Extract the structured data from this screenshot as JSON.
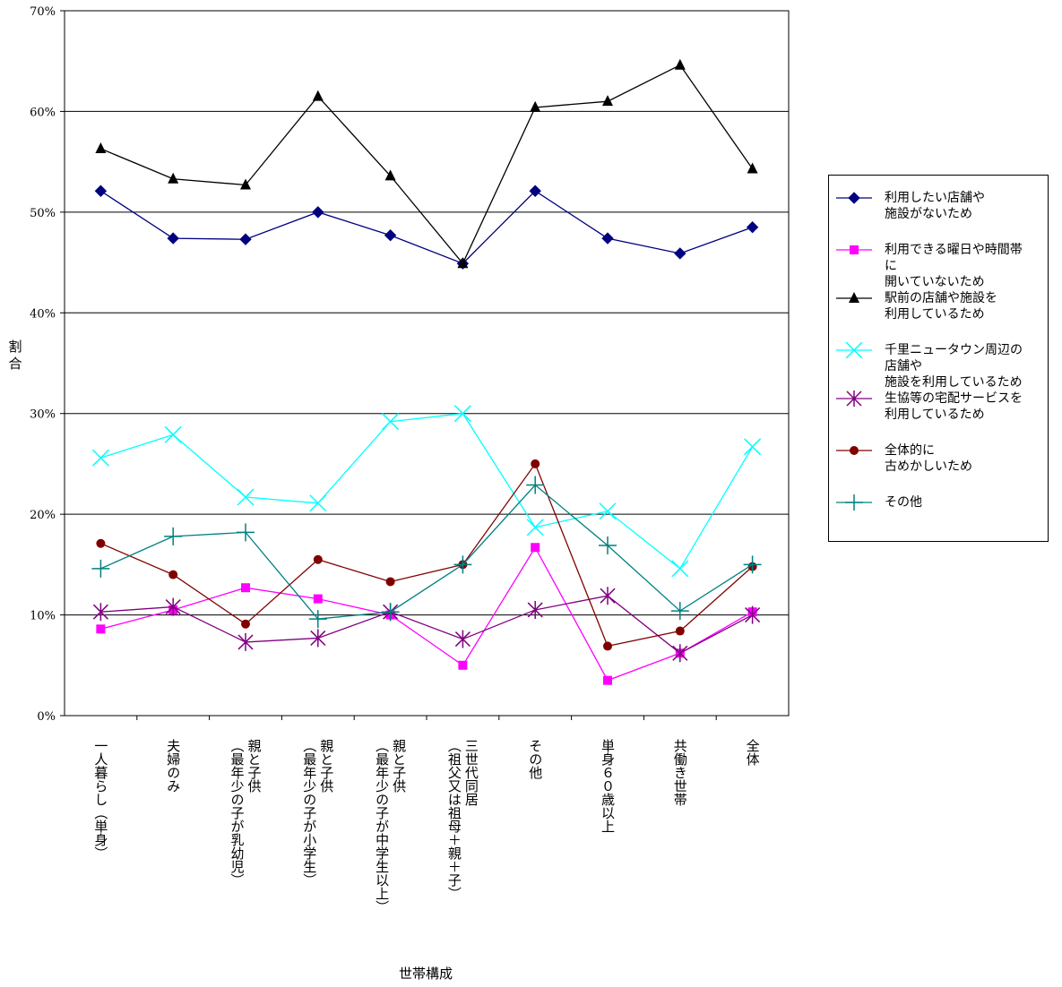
{
  "chart_data": {
    "type": "line",
    "title": "",
    "xlabel": "世帯構成",
    "ylabel": "割合",
    "ylim": [
      0,
      70
    ],
    "yticks": [
      "0%",
      "10%",
      "20%",
      "30%",
      "40%",
      "50%",
      "60%",
      "70%"
    ],
    "grid": true,
    "legend_position": "right",
    "categories": [
      "一人暮らし（単身）",
      "夫婦のみ",
      "親と子供\n（最年少の子が乳幼児）",
      "親と子供\n（最年少の子が小学生）",
      "親と子供\n（最年少の子が中学生以上）",
      "三世代同居\n（祖父又は祖母＋親＋子）",
      "その他",
      "単身６０歳以上",
      "共働き世帯",
      "全体"
    ],
    "series": [
      {
        "name": "利用したい店舗や\n施設がないため",
        "color": "#000080",
        "marker": "diamond",
        "values": [
          52.1,
          47.4,
          47.3,
          50.0,
          47.7,
          44.9,
          52.1,
          47.4,
          45.9,
          48.5
        ]
      },
      {
        "name": "利用できる曜日や時間帯\nに\n開いていないため",
        "color": "#ff00ff",
        "marker": "square",
        "values": [
          8.6,
          10.5,
          12.7,
          11.6,
          10.0,
          5.0,
          16.7,
          3.5,
          6.2,
          10.3
        ]
      },
      {
        "name": "駅前の店舗や施設を\n利用しているため",
        "color": "#000000",
        "marker": "triangle",
        "values": [
          56.3,
          53.3,
          52.7,
          61.5,
          53.6,
          44.9,
          60.4,
          61.0,
          64.6,
          54.3
        ]
      },
      {
        "name": "千里ニュータウン周辺の\n店舗や\n施設を利用しているため",
        "color": "#00ffff",
        "marker": "x",
        "values": [
          25.6,
          27.9,
          21.7,
          21.1,
          29.2,
          30.0,
          18.7,
          20.3,
          14.6,
          26.7
        ]
      },
      {
        "name": "生協等の宅配サービスを\n利用しているため",
        "color": "#800080",
        "marker": "star",
        "values": [
          10.3,
          10.8,
          7.3,
          7.7,
          10.3,
          7.6,
          10.5,
          11.9,
          6.2,
          10.0
        ]
      },
      {
        "name": "全体的に\n古めかしいため",
        "color": "#800000",
        "marker": "circle",
        "values": [
          17.1,
          14.0,
          9.1,
          15.5,
          13.3,
          15.0,
          25.0,
          6.9,
          8.4,
          14.8
        ]
      },
      {
        "name": "その他",
        "color": "#008080",
        "marker": "plus",
        "values": [
          14.6,
          17.8,
          18.2,
          9.6,
          10.3,
          15.0,
          22.9,
          16.9,
          10.4,
          15.0
        ]
      }
    ]
  }
}
